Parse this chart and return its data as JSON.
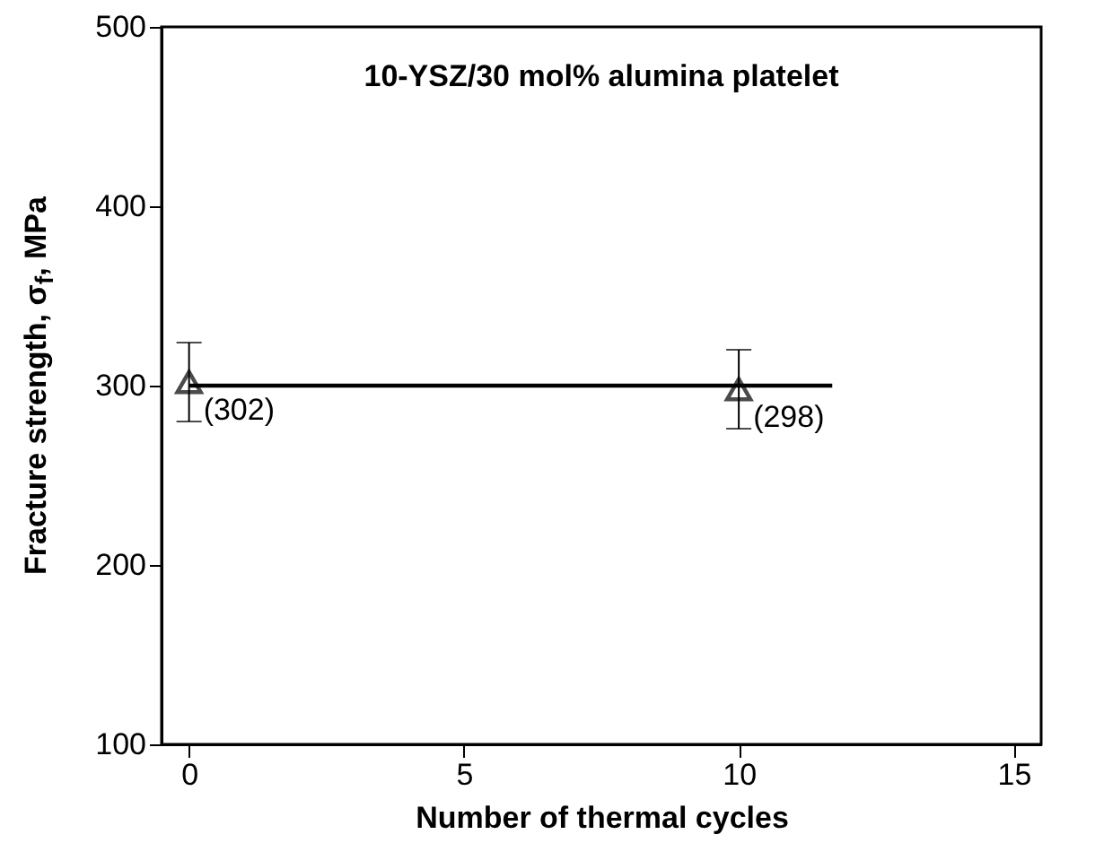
{
  "chart_data": {
    "type": "scatter",
    "xlabel": "Number of thermal cycles",
    "ylabel": "Fracture strength, σ$_{f}$, MPa",
    "annotations": [
      "10-YSZ/30 mol% alumina platelet"
    ],
    "xlim": [
      -0.5,
      15.5
    ],
    "xticks": [
      0,
      5,
      10,
      15
    ],
    "ylim": [
      100,
      500
    ],
    "yticks": [
      100,
      200,
      300,
      400,
      500
    ],
    "series": [
      {
        "marker": "triangle",
        "color": "#000000",
        "x": [
          0,
          10
        ],
        "values": [
          302,
          298
        ],
        "errors": [
          22,
          22
        ],
        "value_labels": [
          "(302)",
          "(298)"
        ]
      },
      {
        "type": "line",
        "marker": "none",
        "color": "#000000",
        "x": [
          0,
          11.7
        ],
        "values": [
          300,
          300
        ],
        "line_style": "solid"
      }
    ]
  }
}
